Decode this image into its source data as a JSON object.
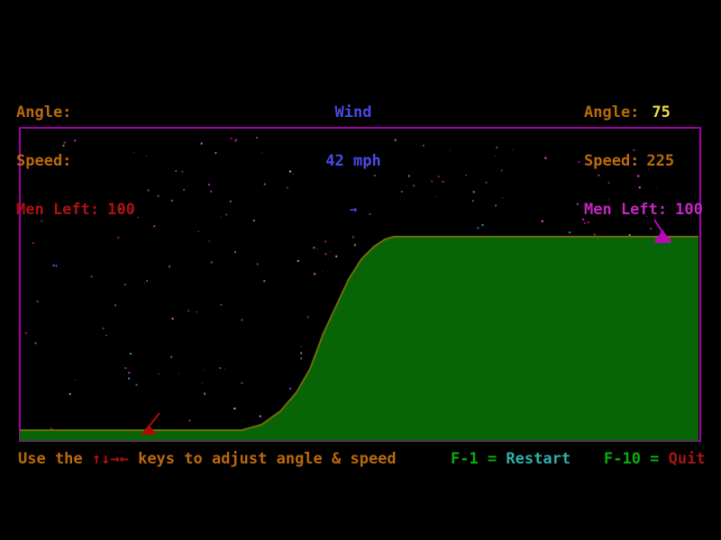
{
  "hud": {
    "left": {
      "angle_label": "Angle:",
      "angle_value": "",
      "speed_label": "Speed:",
      "speed_value": "",
      "men_label": "Men Left:",
      "men_value": "100"
    },
    "wind": {
      "title": "Wind",
      "speed": "42 mph",
      "direction_arrow": "→"
    },
    "right": {
      "angle_label": "Angle:",
      "angle_value": "75",
      "speed_label": "Speed:",
      "speed_value": "225",
      "men_label": "Men Left:",
      "men_value": "100"
    }
  },
  "statusbar": {
    "help_prefix": "Use the ",
    "help_arrows": "↑↓→←",
    "help_suffix": " keys to adjust angle & speed",
    "restart_key": "F-1 = ",
    "restart_label": "Restart",
    "quit_key": "F-10 = ",
    "quit_label": "Quit"
  },
  "colors": {
    "background": "#000000",
    "hud_label_orange": "#BA6A0C",
    "hud_value_yellow": "#EFDF45",
    "hud_men_red": "#B01111",
    "hud_men_magenta": "#C428C4",
    "wind_blue": "#4A4AE8",
    "key_green": "#0CAC0C",
    "restart_cyan": "#2FB0A8",
    "quit_red": "#A31616",
    "border_magenta": "#A400A4",
    "terrain_green": "#076507",
    "terrain_edge_olive": "#6E6E09",
    "tank_left_red": "#B40808",
    "tank_right_magenta": "#B808B8"
  },
  "stars": {
    "count": 220,
    "seed": 1337,
    "palette": [
      "#A400A4",
      "#FF55FF",
      "#8A8A8A",
      "#565656",
      "#5555CC",
      "#A03040",
      "#2F9E9E",
      "#7A3A9E",
      "#B9B9B9",
      "#3A3A77",
      "#C428C4",
      "#804040"
    ]
  }
}
